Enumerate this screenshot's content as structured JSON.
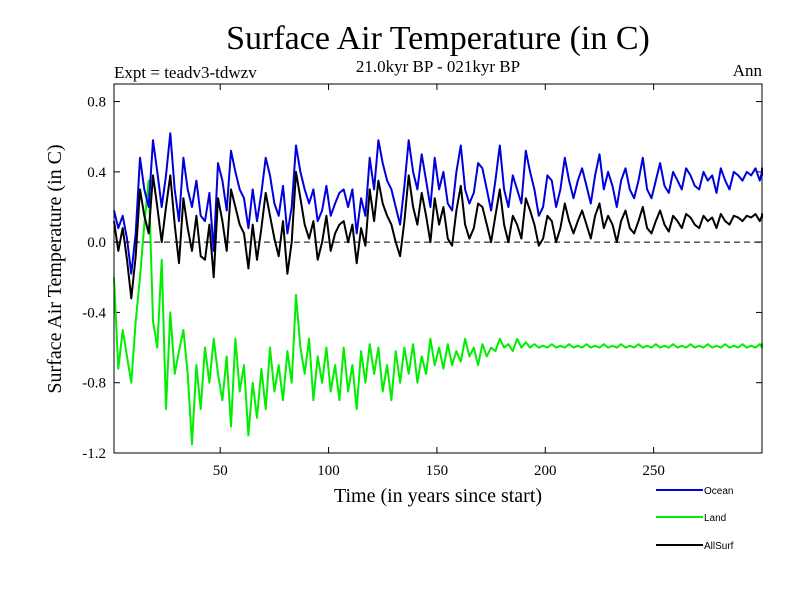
{
  "chart_data": {
    "type": "line",
    "title": "Surface Air Temperature (in C)",
    "subtitle": "21.0kyr BP - 021kyr BP",
    "experiment_label": "Expt = teadv3-tdwzv",
    "period_label": "Ann",
    "xlabel": "Time (in years since start)",
    "ylabel": "Surface Air Temperature (in C)",
    "xlim": [
      1,
      300
    ],
    "ylim": [
      -1.2,
      0.9
    ],
    "x_ticks": [
      50,
      100,
      150,
      200,
      250
    ],
    "x_tick_labels": [
      "50",
      "100",
      "150",
      "200",
      "250"
    ],
    "y_ticks": [
      -1.2,
      -0.8,
      -0.4,
      0.0,
      0.4,
      0.8
    ],
    "y_tick_labels": [
      "-1.2",
      "-0.8",
      "-0.4",
      "0.0",
      "0.4",
      "0.8"
    ],
    "reference_line": 0.0,
    "grid": false,
    "legend_position": "bottom-right",
    "x_sampling": {
      "start": 1,
      "step": 5
    },
    "series": [
      {
        "name": "Ocean",
        "color": "#0000dd",
        "values": [
          0.18,
          0.08,
          0.15,
          0.02,
          -0.18,
          0.05,
          0.48,
          0.3,
          0.2,
          0.58,
          0.4,
          0.2,
          0.38,
          0.62,
          0.3,
          0.12,
          0.48,
          0.3,
          0.2,
          0.35,
          0.15,
          0.12,
          0.28,
          -0.05,
          0.45,
          0.35,
          0.18,
          0.52,
          0.4,
          0.3,
          0.25,
          0.08,
          0.3,
          0.12,
          0.28,
          0.48,
          0.38,
          0.22,
          0.15,
          0.32,
          0.05,
          0.2,
          0.55,
          0.4,
          0.3,
          0.22,
          0.3,
          0.12,
          0.18,
          0.32,
          0.15,
          0.22,
          0.28,
          0.3,
          0.2,
          0.3,
          0.05,
          0.25,
          0.15,
          0.48,
          0.3,
          0.58,
          0.45,
          0.35,
          0.3,
          0.2,
          0.1,
          0.32,
          0.58,
          0.4,
          0.3,
          0.5,
          0.35,
          0.2,
          0.48,
          0.3,
          0.4,
          0.22,
          0.18,
          0.4,
          0.55,
          0.3,
          0.22,
          0.28,
          0.45,
          0.42,
          0.3,
          0.18,
          0.35,
          0.55,
          0.3,
          0.2,
          0.38,
          0.3,
          0.22,
          0.52,
          0.4,
          0.3,
          0.15,
          0.2,
          0.38,
          0.35,
          0.2,
          0.3,
          0.48,
          0.35,
          0.25,
          0.35,
          0.42,
          0.32,
          0.22,
          0.38,
          0.5,
          0.3,
          0.4,
          0.32,
          0.2,
          0.35,
          0.42,
          0.3,
          0.25,
          0.35,
          0.48,
          0.3,
          0.25,
          0.35,
          0.45,
          0.32,
          0.28,
          0.4,
          0.35,
          0.3,
          0.42,
          0.38,
          0.32,
          0.3,
          0.4,
          0.35,
          0.38,
          0.28,
          0.42,
          0.35,
          0.3,
          0.4,
          0.38,
          0.35,
          0.4,
          0.38,
          0.42,
          0.35,
          0.4,
          0.38,
          0.4,
          0.42,
          0.38,
          0.4,
          0.39,
          0.4
        ]
      },
      {
        "name": "Land",
        "color": "#00ee00",
        "values": [
          -0.2,
          -0.72,
          -0.5,
          -0.65,
          -0.8,
          -0.45,
          -0.2,
          0.1,
          0.35,
          -0.45,
          -0.6,
          -0.1,
          -0.95,
          -0.4,
          -0.75,
          -0.62,
          -0.5,
          -0.75,
          -1.15,
          -0.7,
          -0.95,
          -0.6,
          -0.8,
          -0.55,
          -0.75,
          -0.9,
          -0.65,
          -1.05,
          -0.55,
          -0.85,
          -0.7,
          -1.1,
          -0.8,
          -1.0,
          -0.72,
          -0.95,
          -0.6,
          -0.85,
          -0.7,
          -0.9,
          -0.62,
          -0.8,
          -0.3,
          -0.6,
          -0.75,
          -0.55,
          -0.9,
          -0.65,
          -0.8,
          -0.6,
          -0.85,
          -0.7,
          -0.9,
          -0.6,
          -0.85,
          -0.7,
          -0.95,
          -0.62,
          -0.8,
          -0.58,
          -0.75,
          -0.6,
          -0.85,
          -0.7,
          -0.9,
          -0.62,
          -0.8,
          -0.6,
          -0.75,
          -0.58,
          -0.8,
          -0.65,
          -0.75,
          -0.55,
          -0.7,
          -0.6,
          -0.72,
          -0.58,
          -0.7,
          -0.62,
          -0.68,
          -0.55,
          -0.65,
          -0.6,
          -0.7,
          -0.58,
          -0.65,
          -0.6,
          -0.62,
          -0.55,
          -0.6,
          -0.58,
          -0.62,
          -0.55,
          -0.6,
          -0.57,
          -0.6,
          -0.58,
          -0.6,
          -0.59,
          -0.6,
          -0.58,
          -0.6,
          -0.59,
          -0.6,
          -0.58,
          -0.6,
          -0.59,
          -0.6,
          -0.58,
          -0.6,
          -0.59,
          -0.6,
          -0.58,
          -0.6,
          -0.59,
          -0.6,
          -0.58,
          -0.6,
          -0.59,
          -0.6,
          -0.58,
          -0.6,
          -0.59,
          -0.6,
          -0.58,
          -0.6,
          -0.59,
          -0.6,
          -0.58,
          -0.6,
          -0.59,
          -0.6,
          -0.58,
          -0.6,
          -0.59,
          -0.6,
          -0.58,
          -0.6,
          -0.59,
          -0.6,
          -0.58,
          -0.6,
          -0.59,
          -0.6,
          -0.58,
          -0.6,
          -0.59,
          -0.6,
          -0.58,
          -0.6,
          -0.59,
          -0.6,
          -0.58,
          -0.6,
          -0.59,
          -0.6,
          -0.58,
          -0.6,
          -0.59
        ]
      },
      {
        "name": "AllSurf",
        "color": "#000000",
        "values": [
          0.12,
          -0.05,
          0.08,
          -0.1,
          -0.32,
          -0.08,
          0.3,
          0.15,
          0.05,
          0.38,
          0.2,
          0.0,
          0.2,
          0.38,
          0.1,
          -0.12,
          0.25,
          0.08,
          -0.05,
          0.15,
          -0.08,
          -0.1,
          0.1,
          -0.2,
          0.25,
          0.12,
          -0.05,
          0.3,
          0.2,
          0.1,
          0.05,
          -0.15,
          0.1,
          -0.1,
          0.08,
          0.28,
          0.15,
          0.02,
          -0.08,
          0.12,
          -0.18,
          0.0,
          0.4,
          0.25,
          0.1,
          0.02,
          0.12,
          -0.1,
          0.0,
          0.15,
          -0.05,
          0.05,
          0.1,
          0.12,
          0.0,
          0.1,
          -0.12,
          0.08,
          -0.02,
          0.3,
          0.12,
          0.35,
          0.22,
          0.15,
          0.1,
          0.0,
          -0.08,
          0.12,
          0.38,
          0.2,
          0.1,
          0.28,
          0.15,
          0.0,
          0.25,
          0.1,
          0.2,
          0.02,
          -0.02,
          0.18,
          0.32,
          0.1,
          0.02,
          0.08,
          0.22,
          0.2,
          0.1,
          0.0,
          0.15,
          0.3,
          0.1,
          0.0,
          0.15,
          0.1,
          0.02,
          0.25,
          0.18,
          0.1,
          -0.02,
          0.02,
          0.15,
          0.12,
          0.0,
          0.08,
          0.22,
          0.12,
          0.05,
          0.12,
          0.18,
          0.1,
          0.02,
          0.15,
          0.22,
          0.08,
          0.15,
          0.1,
          0.0,
          0.12,
          0.18,
          0.08,
          0.05,
          0.12,
          0.2,
          0.08,
          0.05,
          0.12,
          0.18,
          0.1,
          0.06,
          0.15,
          0.12,
          0.08,
          0.16,
          0.14,
          0.1,
          0.08,
          0.15,
          0.12,
          0.14,
          0.08,
          0.16,
          0.12,
          0.1,
          0.15,
          0.14,
          0.12,
          0.15,
          0.14,
          0.16,
          0.12,
          0.15,
          0.14,
          0.15,
          0.16,
          0.14,
          0.15,
          0.14,
          0.15
        ]
      }
    ]
  }
}
